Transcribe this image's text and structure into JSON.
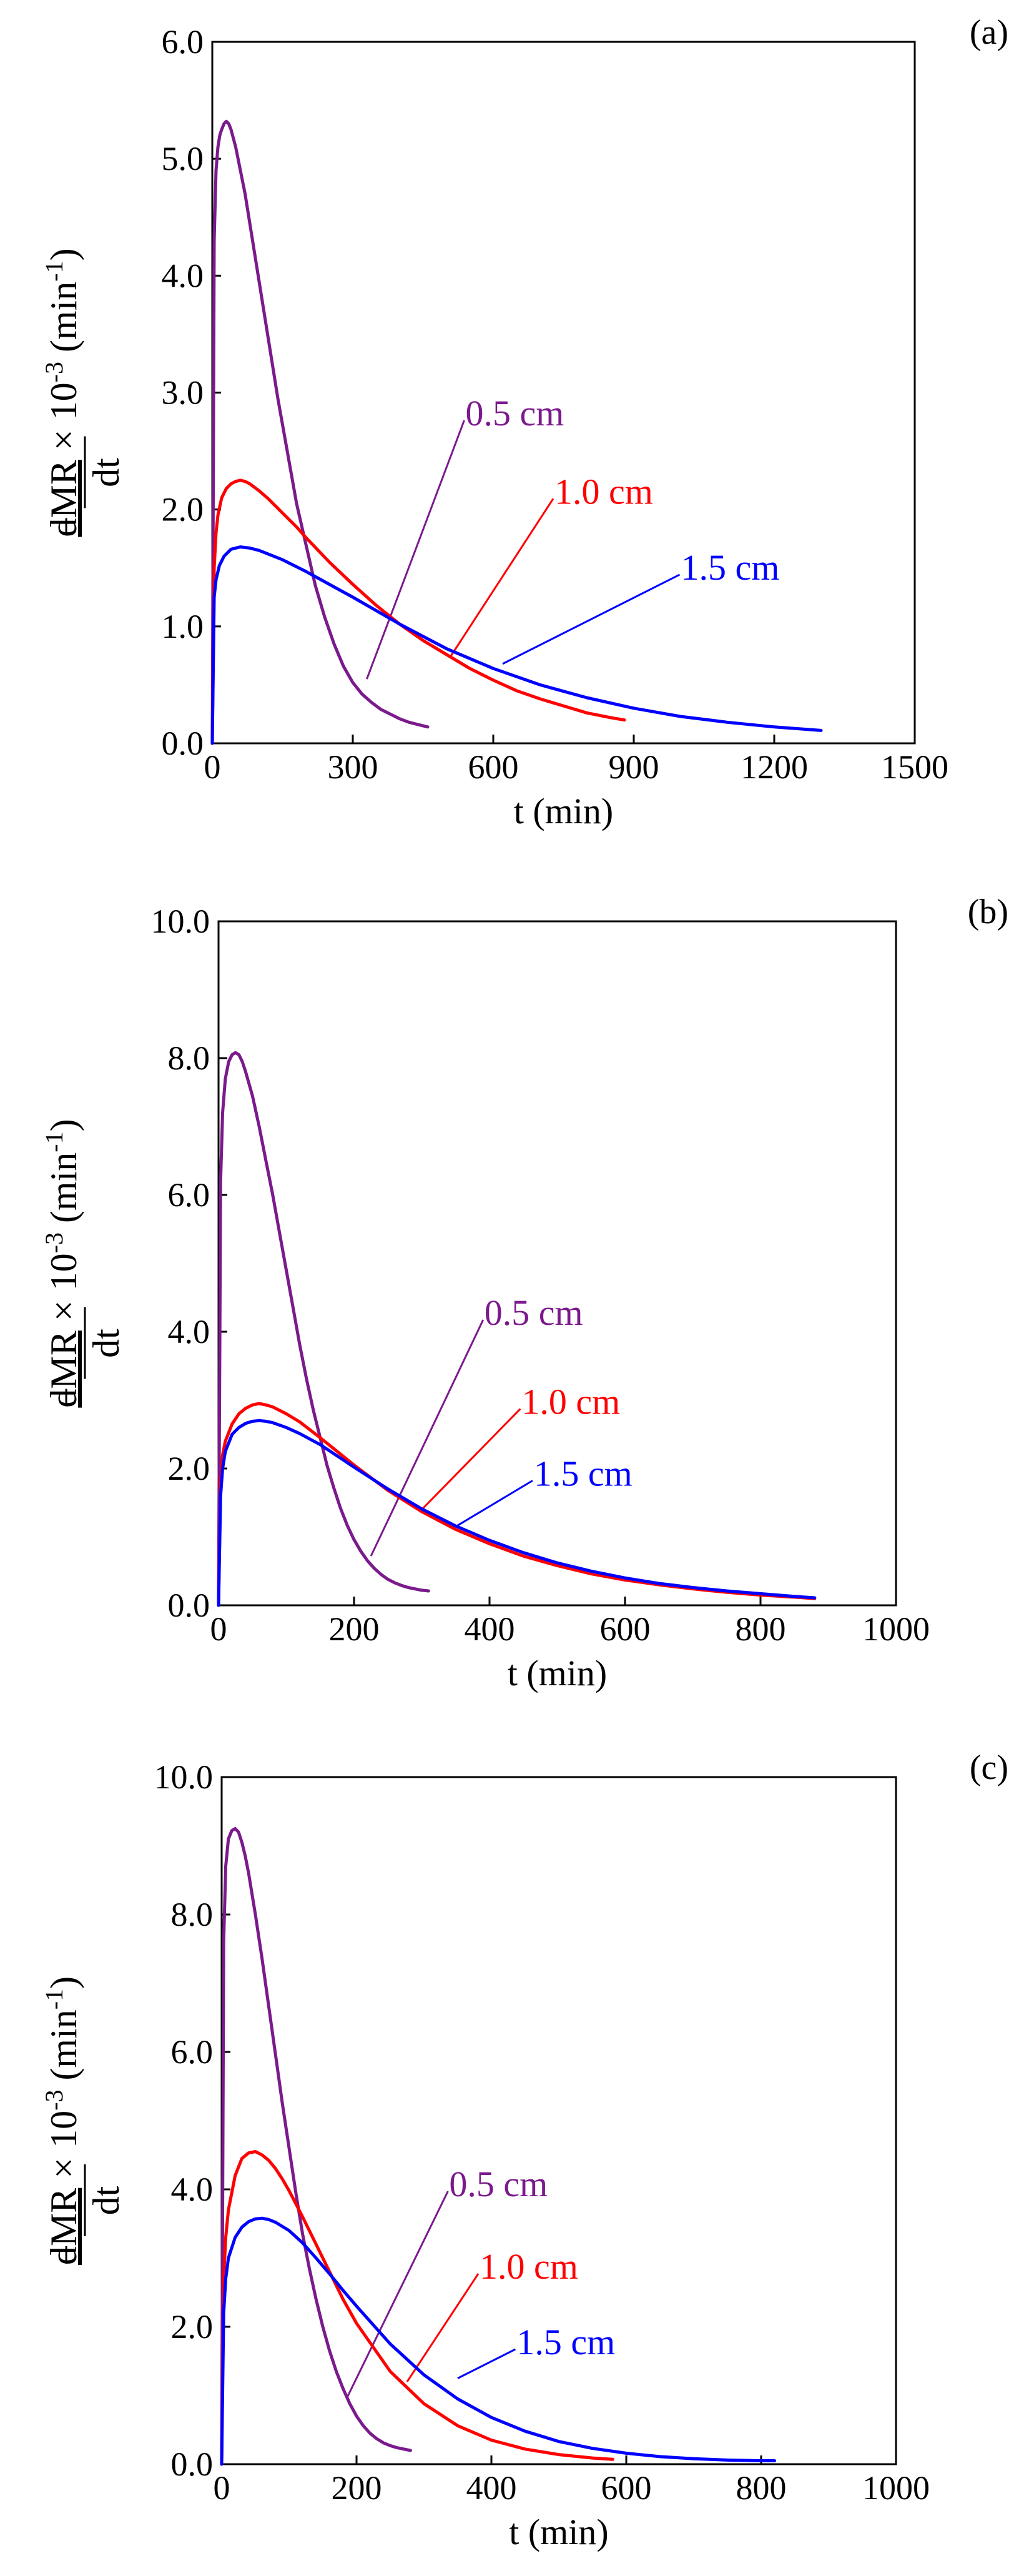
{
  "chart_data": [
    {
      "panel": "(a)",
      "type": "line",
      "xlabel": "t (min)",
      "xlim": [
        0,
        1500
      ],
      "xticks": [
        0,
        300,
        600,
        900,
        1200,
        1500
      ],
      "ylim": [
        0,
        6
      ],
      "yticks": [
        0,
        1,
        2,
        3,
        4,
        5,
        6
      ],
      "ylabel": {
        "minus": "−",
        "numerator": "dMR",
        "times": " × 10",
        "exp": "-3",
        "unit_open": " (min",
        "unit_exp": "-1",
        "unit_close": ")",
        "denominator": "dt"
      },
      "series": [
        {
          "name": "0.5 cm",
          "color": "#7B1A8C",
          "x": [
            0,
            4,
            8,
            12,
            16,
            20,
            25,
            30,
            35,
            40,
            50,
            60,
            70,
            80,
            100,
            120,
            140,
            160,
            180,
            200,
            220,
            240,
            260,
            280,
            300,
            320,
            340,
            360,
            380,
            400,
            420,
            440,
            460
          ],
          "y": [
            0,
            4.3,
            4.9,
            5.1,
            5.2,
            5.25,
            5.3,
            5.32,
            5.3,
            5.25,
            5.1,
            4.9,
            4.7,
            4.45,
            3.95,
            3.45,
            2.95,
            2.5,
            2.05,
            1.7,
            1.35,
            1.08,
            0.85,
            0.66,
            0.52,
            0.42,
            0.35,
            0.29,
            0.25,
            0.21,
            0.18,
            0.16,
            0.14
          ],
          "label_at": [
            330,
            0.55
          ],
          "label_pos": [
            530,
            2.72
          ]
        },
        {
          "name": "1.0 cm",
          "color": "#FF0000",
          "x": [
            0,
            4,
            8,
            12,
            20,
            30,
            40,
            50,
            60,
            70,
            80,
            100,
            120,
            150,
            180,
            200,
            250,
            300,
            350,
            400,
            450,
            500,
            550,
            600,
            650,
            700,
            750,
            800,
            850,
            880
          ],
          "y": [
            0,
            1.5,
            1.8,
            1.95,
            2.1,
            2.18,
            2.22,
            2.24,
            2.25,
            2.24,
            2.22,
            2.16,
            2.09,
            1.97,
            1.85,
            1.76,
            1.55,
            1.36,
            1.18,
            1.02,
            0.88,
            0.76,
            0.64,
            0.54,
            0.45,
            0.38,
            0.32,
            0.26,
            0.22,
            0.2
          ],
          "label_at": [
            510,
            0.75
          ],
          "label_pos": [
            720,
            2.05
          ]
        },
        {
          "name": "1.5 cm",
          "color": "#0000FF",
          "x": [
            0,
            4,
            8,
            15,
            25,
            40,
            60,
            80,
            100,
            150,
            200,
            250,
            300,
            400,
            500,
            600,
            700,
            800,
            900,
            1000,
            1100,
            1200,
            1300
          ],
          "y": [
            0,
            1.25,
            1.4,
            1.52,
            1.6,
            1.66,
            1.68,
            1.67,
            1.65,
            1.57,
            1.47,
            1.36,
            1.25,
            1.02,
            0.81,
            0.64,
            0.5,
            0.39,
            0.3,
            0.23,
            0.18,
            0.14,
            0.11
          ],
          "label_at": [
            620,
            0.68
          ],
          "label_pos": [
            990,
            1.4
          ]
        }
      ]
    },
    {
      "panel": "(b)",
      "type": "line",
      "xlabel": "t (min)",
      "xlim": [
        0,
        1000
      ],
      "xticks": [
        0,
        200,
        400,
        600,
        800,
        1000
      ],
      "ylim": [
        0,
        10
      ],
      "yticks": [
        0,
        2,
        4,
        6,
        8,
        10
      ],
      "ylabel": {
        "minus": "−",
        "numerator": "dMR",
        "times": " × 10",
        "exp": "-3",
        "unit_open": " (min",
        "unit_exp": "-1",
        "unit_close": ")",
        "denominator": "dt"
      },
      "series": [
        {
          "name": "0.5 cm",
          "color": "#7B1A8C",
          "x": [
            0,
            3,
            6,
            10,
            15,
            20,
            25,
            30,
            35,
            40,
            50,
            60,
            70,
            80,
            90,
            100,
            110,
            120,
            130,
            140,
            150,
            160,
            170,
            180,
            190,
            200,
            210,
            220,
            230,
            240,
            250,
            260,
            270,
            280,
            290,
            300,
            310
          ],
          "y": [
            0,
            6.2,
            7.2,
            7.7,
            7.95,
            8.05,
            8.08,
            8.05,
            7.95,
            7.8,
            7.45,
            7.0,
            6.5,
            6.0,
            5.45,
            4.9,
            4.35,
            3.8,
            3.3,
            2.85,
            2.45,
            2.05,
            1.72,
            1.42,
            1.17,
            0.96,
            0.79,
            0.65,
            0.54,
            0.45,
            0.38,
            0.33,
            0.29,
            0.26,
            0.24,
            0.22,
            0.21
          ],
          "label_at": [
            225,
            0.72
          ],
          "label_pos": [
            385,
            4.1
          ]
        },
        {
          "name": "1.0 cm",
          "color": "#FF0000",
          "x": [
            0,
            3,
            6,
            10,
            20,
            30,
            40,
            50,
            60,
            70,
            80,
            100,
            120,
            150,
            200,
            250,
            300,
            350,
            400,
            450,
            500,
            550,
            600,
            650,
            700,
            750,
            800,
            850,
            880
          ],
          "y": [
            0,
            1.8,
            2.2,
            2.4,
            2.65,
            2.8,
            2.88,
            2.93,
            2.95,
            2.93,
            2.9,
            2.8,
            2.68,
            2.45,
            2.05,
            1.68,
            1.37,
            1.11,
            0.9,
            0.72,
            0.58,
            0.46,
            0.37,
            0.3,
            0.24,
            0.19,
            0.15,
            0.12,
            0.1
          ],
          "label_at": [
            300,
            1.4
          ],
          "label_pos": [
            440,
            2.8
          ]
        },
        {
          "name": "1.5 cm",
          "color": "#0000FF",
          "x": [
            0,
            3,
            6,
            10,
            20,
            30,
            40,
            50,
            60,
            70,
            80,
            100,
            120,
            150,
            200,
            250,
            300,
            350,
            400,
            450,
            500,
            550,
            600,
            650,
            700,
            750,
            800,
            850,
            880
          ],
          "y": [
            0,
            1.6,
            2.0,
            2.25,
            2.5,
            2.6,
            2.66,
            2.69,
            2.7,
            2.69,
            2.67,
            2.6,
            2.51,
            2.35,
            2.02,
            1.7,
            1.41,
            1.16,
            0.95,
            0.77,
            0.62,
            0.5,
            0.4,
            0.32,
            0.26,
            0.21,
            0.17,
            0.13,
            0.11
          ],
          "label_at": [
            350,
            1.15
          ],
          "label_pos": [
            458,
            1.75
          ]
        }
      ]
    },
    {
      "panel": "(c)",
      "type": "line",
      "xlabel": "t (min)",
      "xlim": [
        0,
        1000
      ],
      "xticks": [
        0,
        200,
        400,
        600,
        800,
        1000
      ],
      "ylim": [
        0,
        10
      ],
      "yticks": [
        0,
        2,
        4,
        6,
        8,
        10
      ],
      "ylabel": {
        "minus": "−",
        "numerator": "dMR",
        "times": " × 10",
        "exp": "-3",
        "unit_open": " (min",
        "unit_exp": "-1",
        "unit_close": ")",
        "denominator": "dt"
      },
      "series": [
        {
          "name": "0.5 cm",
          "color": "#7B1A8C",
          "x": [
            0,
            3,
            6,
            10,
            15,
            20,
            25,
            30,
            35,
            40,
            50,
            60,
            70,
            80,
            90,
            100,
            110,
            120,
            130,
            140,
            150,
            160,
            170,
            180,
            190,
            200,
            210,
            220,
            230,
            240,
            250,
            260,
            270,
            280
          ],
          "y": [
            0,
            7.6,
            8.7,
            9.1,
            9.22,
            9.25,
            9.2,
            9.05,
            8.85,
            8.6,
            8.0,
            7.35,
            6.65,
            5.95,
            5.25,
            4.6,
            3.95,
            3.35,
            2.85,
            2.4,
            2.0,
            1.65,
            1.35,
            1.1,
            0.88,
            0.7,
            0.56,
            0.45,
            0.37,
            0.31,
            0.27,
            0.24,
            0.22,
            0.2
          ],
          "label_at": [
            185,
            0.95
          ],
          "label_pos": [
            330,
            3.9
          ]
        },
        {
          "name": "1.0 cm",
          "color": "#FF0000",
          "x": [
            0,
            3,
            6,
            10,
            20,
            30,
            40,
            50,
            60,
            70,
            80,
            90,
            100,
            120,
            140,
            160,
            180,
            200,
            250,
            300,
            350,
            400,
            450,
            500,
            550,
            580
          ],
          "y": [
            0,
            2.7,
            3.3,
            3.7,
            4.2,
            4.45,
            4.53,
            4.55,
            4.5,
            4.42,
            4.3,
            4.15,
            3.98,
            3.6,
            3.2,
            2.8,
            2.4,
            2.05,
            1.35,
            0.88,
            0.56,
            0.35,
            0.22,
            0.14,
            0.09,
            0.07
          ],
          "label_at": [
            275,
            1.2
          ],
          "label_pos": [
            375,
            2.7
          ]
        },
        {
          "name": "1.5 cm",
          "color": "#0000FF",
          "x": [
            0,
            3,
            6,
            10,
            20,
            30,
            40,
            50,
            60,
            70,
            80,
            100,
            120,
            140,
            160,
            180,
            200,
            250,
            300,
            350,
            400,
            450,
            500,
            550,
            600,
            650,
            700,
            750,
            800,
            820
          ],
          "y": [
            0,
            2.2,
            2.7,
            3.0,
            3.3,
            3.45,
            3.53,
            3.57,
            3.58,
            3.56,
            3.52,
            3.4,
            3.22,
            3.0,
            2.77,
            2.53,
            2.3,
            1.75,
            1.3,
            0.95,
            0.68,
            0.48,
            0.33,
            0.23,
            0.16,
            0.11,
            0.08,
            0.06,
            0.05,
            0.05
          ],
          "label_at": [
            350,
            1.25
          ],
          "label_pos": [
            430,
            1.6
          ]
        }
      ]
    }
  ]
}
